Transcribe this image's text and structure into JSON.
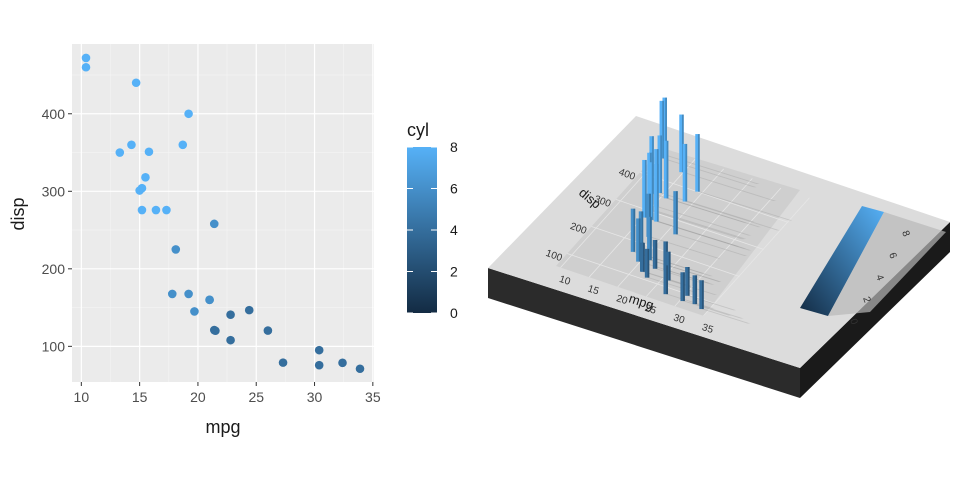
{
  "chart_data": [
    {
      "type": "scatter",
      "xlabel": "mpg",
      "ylabel": "disp",
      "xlim": [
        9.2,
        35.1
      ],
      "ylim": [
        54,
        490
      ],
      "xticks": [
        10,
        15,
        20,
        25,
        30,
        35
      ],
      "yticks": [
        100,
        200,
        300,
        400
      ],
      "grid": true,
      "legend": {
        "title": "cyl",
        "placement": "right",
        "type": "colorbar",
        "ticks": [
          0,
          2,
          4,
          6,
          8
        ],
        "low_color": "#132B43",
        "high_color": "#56B1F7",
        "range": [
          0,
          8
        ]
      },
      "points": [
        {
          "x": 21.0,
          "y": 160,
          "cyl": 6
        },
        {
          "x": 21.0,
          "y": 160,
          "cyl": 6
        },
        {
          "x": 22.8,
          "y": 108,
          "cyl": 4
        },
        {
          "x": 21.4,
          "y": 258,
          "cyl": 6
        },
        {
          "x": 18.7,
          "y": 360,
          "cyl": 8
        },
        {
          "x": 18.1,
          "y": 225,
          "cyl": 6
        },
        {
          "x": 14.3,
          "y": 360,
          "cyl": 8
        },
        {
          "x": 24.4,
          "y": 146.7,
          "cyl": 4
        },
        {
          "x": 22.8,
          "y": 140.8,
          "cyl": 4
        },
        {
          "x": 19.2,
          "y": 167.6,
          "cyl": 6
        },
        {
          "x": 17.8,
          "y": 167.6,
          "cyl": 6
        },
        {
          "x": 16.4,
          "y": 275.8,
          "cyl": 8
        },
        {
          "x": 17.3,
          "y": 275.8,
          "cyl": 8
        },
        {
          "x": 15.2,
          "y": 275.8,
          "cyl": 8
        },
        {
          "x": 10.4,
          "y": 472,
          "cyl": 8
        },
        {
          "x": 10.4,
          "y": 460,
          "cyl": 8
        },
        {
          "x": 14.7,
          "y": 440,
          "cyl": 8
        },
        {
          "x": 32.4,
          "y": 78.7,
          "cyl": 4
        },
        {
          "x": 30.4,
          "y": 75.7,
          "cyl": 4
        },
        {
          "x": 33.9,
          "y": 71.1,
          "cyl": 4
        },
        {
          "x": 21.5,
          "y": 120.1,
          "cyl": 4
        },
        {
          "x": 15.5,
          "y": 318,
          "cyl": 8
        },
        {
          "x": 15.2,
          "y": 304,
          "cyl": 8
        },
        {
          "x": 13.3,
          "y": 350,
          "cyl": 8
        },
        {
          "x": 19.2,
          "y": 400,
          "cyl": 8
        },
        {
          "x": 27.3,
          "y": 79,
          "cyl": 4
        },
        {
          "x": 26.0,
          "y": 120.3,
          "cyl": 4
        },
        {
          "x": 30.4,
          "y": 95.1,
          "cyl": 4
        },
        {
          "x": 15.8,
          "y": 351,
          "cyl": 8
        },
        {
          "x": 19.7,
          "y": 145,
          "cyl": 6
        },
        {
          "x": 15.0,
          "y": 301,
          "cyl": 8
        },
        {
          "x": 21.4,
          "y": 121,
          "cyl": 4
        }
      ]
    },
    {
      "type": "bar",
      "view": "3d-rendered",
      "xlabel": "mpg",
      "ylabel": "disp",
      "xticks": [
        10,
        15,
        20,
        25,
        30,
        35
      ],
      "yticks": [
        100,
        200,
        300,
        400
      ],
      "legend_ticks": [
        0,
        2,
        4,
        6,
        8
      ],
      "note": "rayshader-style 3D extrusion of the same mpg vs disp scatter, columns height = cyl"
    }
  ]
}
